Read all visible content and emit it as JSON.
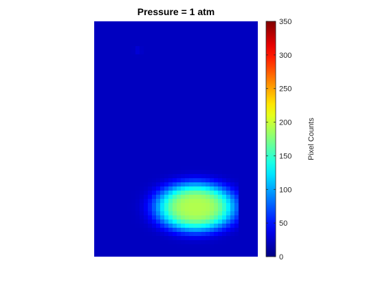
{
  "chart_data": {
    "type": "heatmap",
    "title": "Pressure = 1 atm",
    "colormap": "jet",
    "colorbar": {
      "label": "Pixel Counts",
      "range": [
        0,
        350
      ],
      "ticks": [
        0,
        50,
        100,
        150,
        200,
        250,
        300,
        350
      ],
      "tick_labels": [
        "0",
        "50",
        "100",
        "150",
        "200",
        "250",
        "300",
        "350"
      ]
    },
    "background_value": 22,
    "blobs": [
      {
        "center": [
          0.615,
          0.79
        ],
        "sigma": [
          0.2,
          0.085
        ],
        "peak": 170
      },
      {
        "center": [
          0.265,
          0.125
        ],
        "sigma": [
          0.02,
          0.015
        ],
        "peak": 8
      }
    ],
    "clip_right_fraction": 0.865,
    "axes_visible": false
  }
}
